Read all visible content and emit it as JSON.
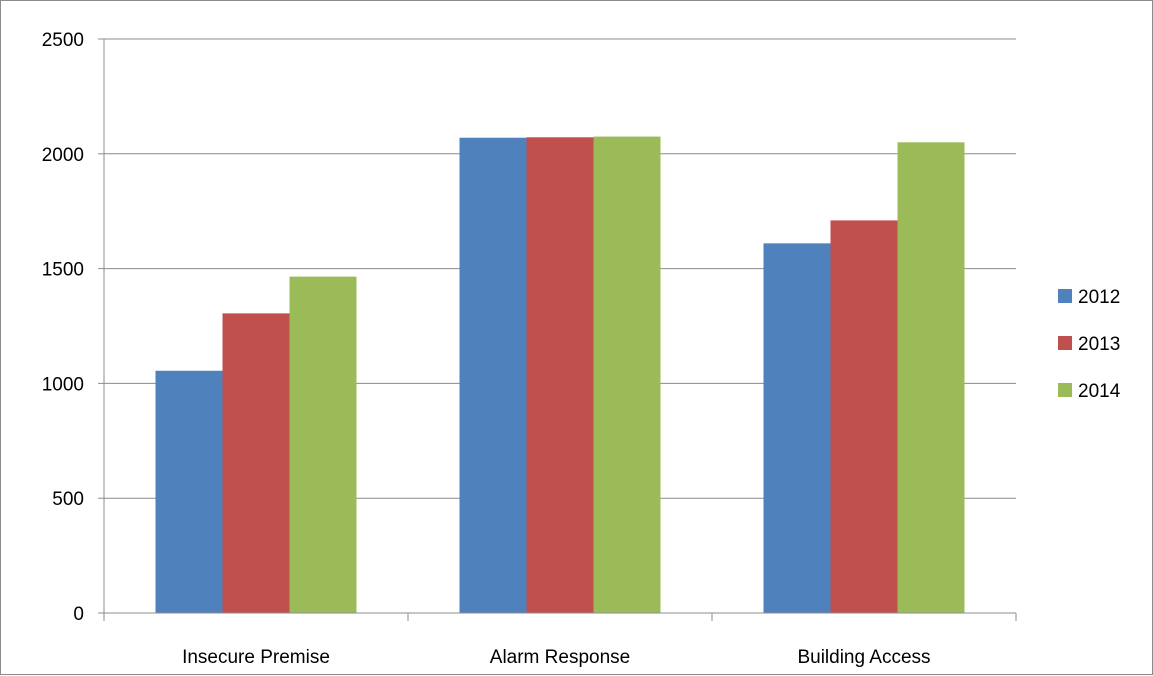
{
  "chart_data": {
    "type": "bar",
    "categories": [
      "Insecure Premise",
      "Alarm Response",
      "Building Access"
    ],
    "series": [
      {
        "name": "2012",
        "color": "#4f81bd",
        "values": [
          1055,
          2070,
          1610
        ]
      },
      {
        "name": "2013",
        "color": "#c0504d",
        "values": [
          1305,
          2072,
          1710
        ]
      },
      {
        "name": "2014",
        "color": "#9bbb59",
        "values": [
          1465,
          2075,
          2050
        ]
      }
    ],
    "ylim": [
      0,
      2500
    ],
    "yticks": [
      "0",
      "500",
      "1000",
      "1500",
      "2000",
      "2500"
    ],
    "grid": true,
    "legend_position": "right",
    "title": "",
    "xlabel": "",
    "ylabel": ""
  }
}
